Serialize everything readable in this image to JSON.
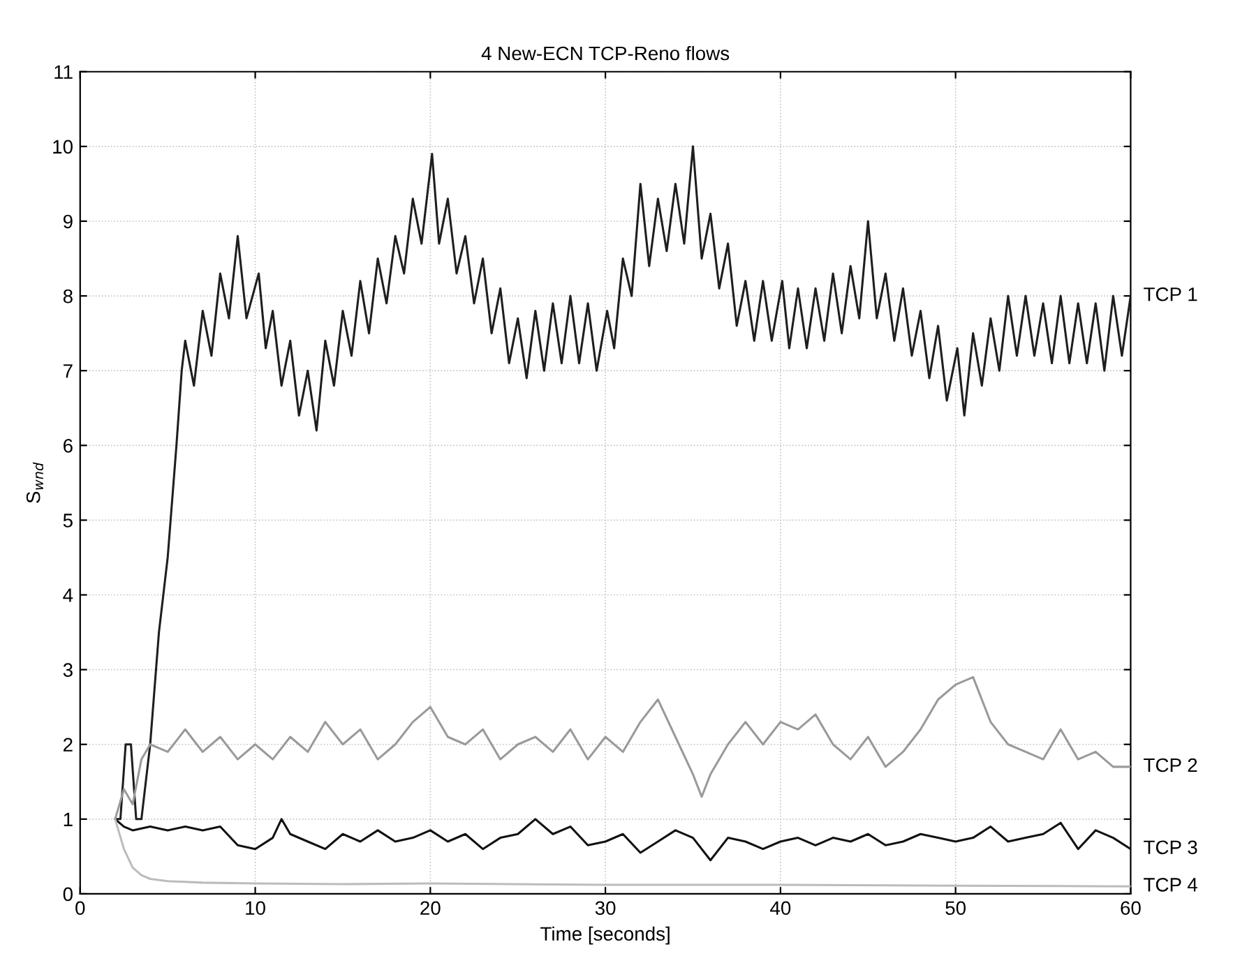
{
  "chart_data": {
    "type": "line",
    "title": "4 New-ECN TCP-Reno flows",
    "xlabel": "Time [seconds]",
    "ylabel": "S$_{wnd}$",
    "xlim": [
      0,
      60
    ],
    "xticks": [
      0,
      10,
      20,
      30,
      40,
      50,
      60
    ],
    "ylim": [
      0,
      11
    ],
    "yticks": [
      0,
      1,
      2,
      3,
      4,
      5,
      6,
      7,
      8,
      9,
      10,
      11
    ],
    "grid": true,
    "line_style": "solid",
    "marker": "none",
    "series": [
      {
        "name": "TCP 1",
        "color": "#1e1e1e",
        "x": [
          2.0,
          2.3,
          2.6,
          2.9,
          3.2,
          3.5,
          4.0,
          4.5,
          5.0,
          5.5,
          5.8,
          6.0,
          6.5,
          7.0,
          7.5,
          8.0,
          8.5,
          9.0,
          9.5,
          10.2,
          10.6,
          11.0,
          11.5,
          12.0,
          12.5,
          13.0,
          13.5,
          14.0,
          14.5,
          15.0,
          15.5,
          16.0,
          16.5,
          17.0,
          17.5,
          18.0,
          18.5,
          19.0,
          19.5,
          20.1,
          20.5,
          21.0,
          21.5,
          22.0,
          22.5,
          23.0,
          23.5,
          24.0,
          24.5,
          25.0,
          25.5,
          26.0,
          26.5,
          27.0,
          27.5,
          28.0,
          28.5,
          29.0,
          29.5,
          30.1,
          30.5,
          31.0,
          31.5,
          32.0,
          32.5,
          33.0,
          33.5,
          34.0,
          34.5,
          35.0,
          35.5,
          36.0,
          36.5,
          37.0,
          37.5,
          38.0,
          38.5,
          39.0,
          39.5,
          40.1,
          40.5,
          41.0,
          41.5,
          42.0,
          42.5,
          43.0,
          43.5,
          44.0,
          44.5,
          45.0,
          45.5,
          46.0,
          46.5,
          47.0,
          47.5,
          48.0,
          48.5,
          49.0,
          49.5,
          50.1,
          50.5,
          51.0,
          51.5,
          52.0,
          52.5,
          53.0,
          53.5,
          54.0,
          54.5,
          55.0,
          55.5,
          56.0,
          56.5,
          57.0,
          57.5,
          58.0,
          58.5,
          59.0,
          59.5,
          60.0
        ],
        "values": [
          1.0,
          1.0,
          2.0,
          2.0,
          1.0,
          1.0,
          2.0,
          3.5,
          4.5,
          6.0,
          7.0,
          7.4,
          6.8,
          7.8,
          7.2,
          8.3,
          7.7,
          8.8,
          7.7,
          8.3,
          7.3,
          7.8,
          6.8,
          7.4,
          6.4,
          7.0,
          6.2,
          7.4,
          6.8,
          7.8,
          7.2,
          8.2,
          7.5,
          8.5,
          7.9,
          8.8,
          8.3,
          9.3,
          8.7,
          9.9,
          8.7,
          9.3,
          8.3,
          8.8,
          7.9,
          8.5,
          7.5,
          8.1,
          7.1,
          7.7,
          6.9,
          7.8,
          7.0,
          7.9,
          7.1,
          8.0,
          7.1,
          7.9,
          7.0,
          7.8,
          7.3,
          8.5,
          8.0,
          9.5,
          8.4,
          9.3,
          8.6,
          9.5,
          8.7,
          10.0,
          8.5,
          9.1,
          8.1,
          8.7,
          7.6,
          8.2,
          7.4,
          8.2,
          7.4,
          8.2,
          7.3,
          8.1,
          7.3,
          8.1,
          7.4,
          8.3,
          7.5,
          8.4,
          7.7,
          9.0,
          7.7,
          8.3,
          7.4,
          8.1,
          7.2,
          7.8,
          6.9,
          7.6,
          6.6,
          7.3,
          6.4,
          7.5,
          6.8,
          7.7,
          7.0,
          8.0,
          7.2,
          8.0,
          7.2,
          7.9,
          7.1,
          8.0,
          7.1,
          7.9,
          7.1,
          7.9,
          7.0,
          8.0,
          7.2,
          8.0
        ]
      },
      {
        "name": "TCP 2",
        "color": "#9a9a9a",
        "x": [
          2,
          2.5,
          3,
          3.5,
          4,
          5,
          6,
          7,
          8,
          9,
          10,
          11,
          12,
          13,
          14,
          15,
          16,
          17,
          18,
          19,
          20,
          21,
          22,
          23,
          24,
          25,
          26,
          27,
          28,
          29,
          30,
          31,
          32,
          33,
          34,
          35,
          35.5,
          36,
          37,
          38,
          39,
          40,
          41,
          42,
          43,
          44,
          45,
          46,
          47,
          48,
          49,
          50,
          51,
          52,
          53,
          54,
          55,
          56,
          57,
          58,
          59,
          60
        ],
        "values": [
          1.0,
          1.4,
          1.2,
          1.8,
          2.0,
          1.9,
          2.2,
          1.9,
          2.1,
          1.8,
          2.0,
          1.8,
          2.1,
          1.9,
          2.3,
          2.0,
          2.2,
          1.8,
          2.0,
          2.3,
          2.5,
          2.1,
          2.0,
          2.2,
          1.8,
          2.0,
          2.1,
          1.9,
          2.2,
          1.8,
          2.1,
          1.9,
          2.3,
          2.6,
          2.1,
          1.6,
          1.3,
          1.6,
          2.0,
          2.3,
          2.0,
          2.3,
          2.2,
          2.4,
          2.0,
          1.8,
          2.1,
          1.7,
          1.9,
          2.2,
          2.6,
          2.8,
          2.9,
          2.3,
          2.0,
          1.9,
          1.8,
          2.2,
          1.8,
          1.9,
          1.7,
          1.7
        ]
      },
      {
        "name": "TCP 3",
        "color": "#111111",
        "x": [
          2,
          2.5,
          3,
          4,
          5,
          6,
          7,
          8,
          9,
          10,
          11,
          11.5,
          12,
          13,
          14,
          15,
          16,
          17,
          18,
          19,
          20,
          21,
          22,
          23,
          24,
          25,
          26,
          27,
          28,
          29,
          30,
          31,
          32,
          33,
          34,
          35,
          36,
          37,
          38,
          39,
          40,
          41,
          42,
          43,
          44,
          45,
          46,
          47,
          48,
          49,
          50,
          51,
          52,
          53,
          54,
          55,
          56,
          57,
          58,
          59,
          60
        ],
        "values": [
          1.0,
          0.9,
          0.85,
          0.9,
          0.85,
          0.9,
          0.85,
          0.9,
          0.65,
          0.6,
          0.75,
          1.0,
          0.8,
          0.7,
          0.6,
          0.8,
          0.7,
          0.85,
          0.7,
          0.75,
          0.85,
          0.7,
          0.8,
          0.6,
          0.75,
          0.8,
          1.0,
          0.8,
          0.9,
          0.65,
          0.7,
          0.8,
          0.55,
          0.7,
          0.85,
          0.75,
          0.45,
          0.75,
          0.7,
          0.6,
          0.7,
          0.75,
          0.65,
          0.75,
          0.7,
          0.8,
          0.65,
          0.7,
          0.8,
          0.75,
          0.7,
          0.75,
          0.9,
          0.7,
          0.75,
          0.8,
          0.95,
          0.6,
          0.85,
          0.75,
          0.6
        ]
      },
      {
        "name": "TCP 4",
        "color": "#bcbcbc",
        "x": [
          2,
          2.5,
          3,
          3.5,
          4,
          5,
          7,
          10,
          15,
          20,
          30,
          40,
          50,
          60
        ],
        "values": [
          1.0,
          0.6,
          0.35,
          0.25,
          0.2,
          0.17,
          0.15,
          0.14,
          0.13,
          0.14,
          0.12,
          0.12,
          0.11,
          0.1
        ]
      }
    ]
  }
}
